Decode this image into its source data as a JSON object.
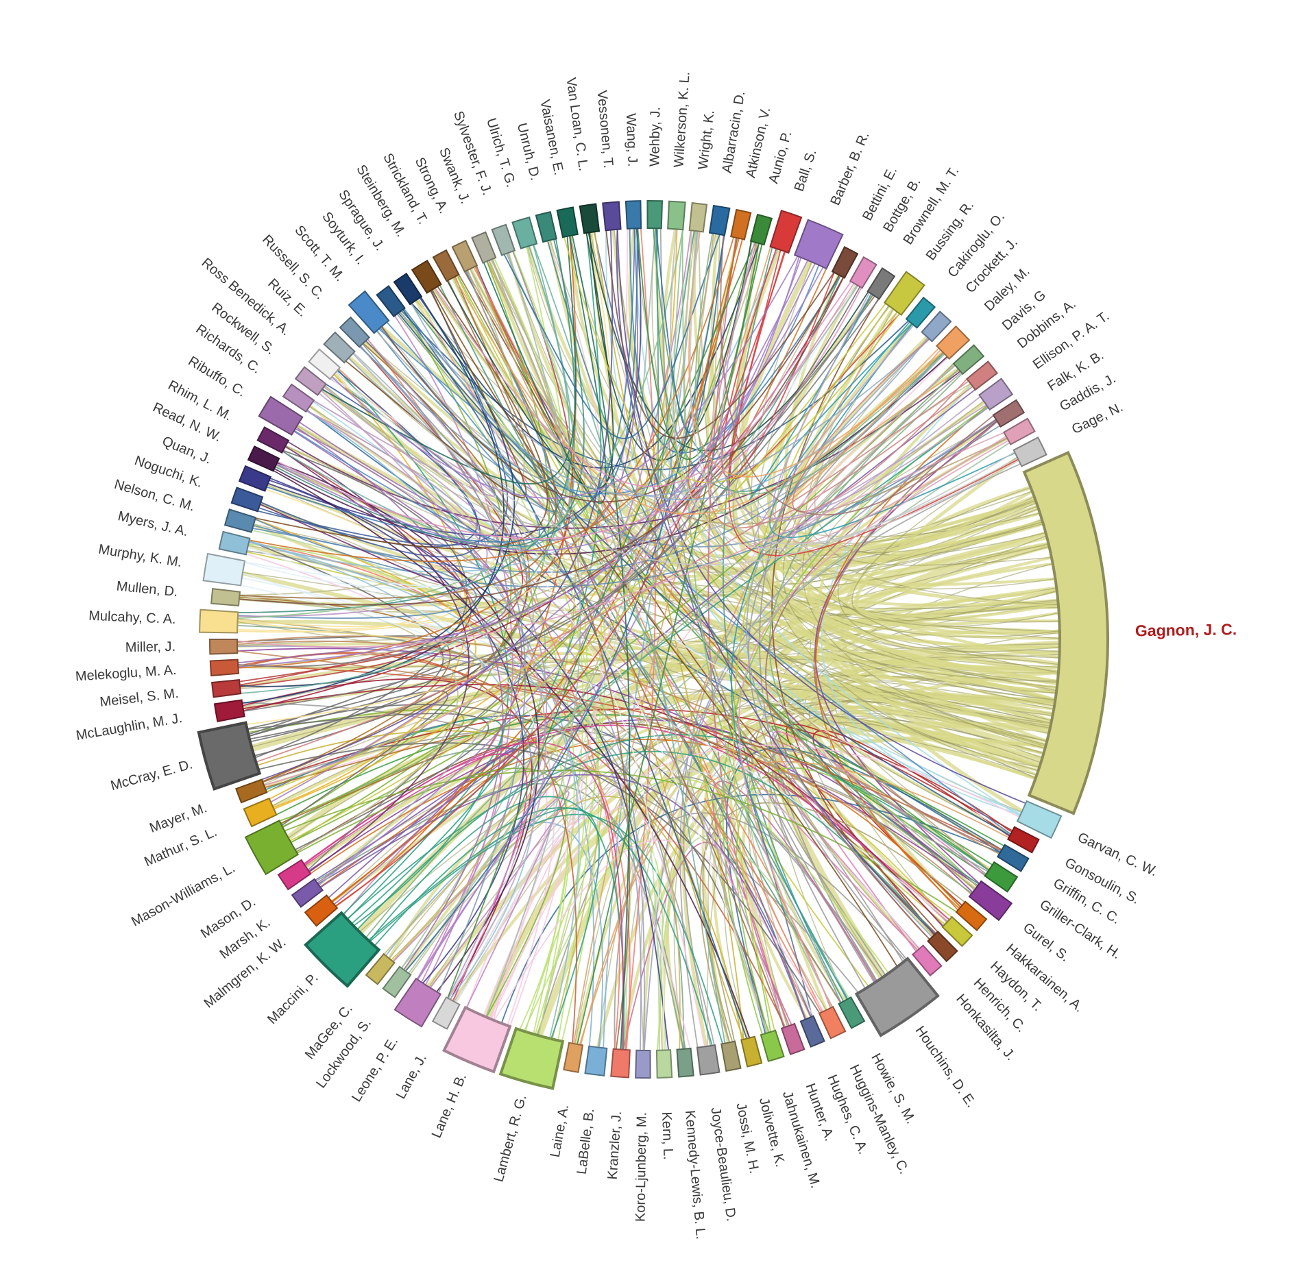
{
  "highlight": "Gagnon, J. C.",
  "nodes": [
    {
      "name": "Gagnon, J. C.",
      "color": "#d8d88a",
      "weight": 24
    },
    {
      "name": "Garvan, C. W.",
      "color": "#a6dce6",
      "weight": 1.6
    },
    {
      "name": "Gonsoulin, S.",
      "color": "#b22222",
      "weight": 1
    },
    {
      "name": "Griffin, C. C.",
      "color": "#2f6a9a",
      "weight": 1
    },
    {
      "name": "Griller-Clark, H.",
      "color": "#3c9a3c",
      "weight": 1.2
    },
    {
      "name": "Gurel, S.",
      "color": "#8a3c9a",
      "weight": 1.4
    },
    {
      "name": "Hakkarainen, A.",
      "color": "#d86a12",
      "weight": 1
    },
    {
      "name": "Haydon, T.",
      "color": "#c8c83a",
      "weight": 1
    },
    {
      "name": "Henrich, C.",
      "color": "#8a4a2a",
      "weight": 1
    },
    {
      "name": "Honkasilta, J.",
      "color": "#e07ab8",
      "weight": 1
    },
    {
      "name": "Houchins, D. E.",
      "color": "#9a9a9a",
      "weight": 4.5
    },
    {
      "name": "Howie, S. M.",
      "color": "#4a9a7a",
      "weight": 1
    },
    {
      "name": "Huggins-Manley, C.",
      "color": "#f08060",
      "weight": 1.1
    },
    {
      "name": "Hughes, C. A.",
      "color": "#5a6a9a",
      "weight": 1
    },
    {
      "name": "Hunter, A.",
      "color": "#c86a9a",
      "weight": 1
    },
    {
      "name": "Jahnukainen, M.",
      "color": "#8ac84a",
      "weight": 1.1
    },
    {
      "name": "Jolivette, K.",
      "color": "#c8b030",
      "weight": 1
    },
    {
      "name": "Jossi, M. H.",
      "color": "#a8a070",
      "weight": 1
    },
    {
      "name": "Joyce-Beaulieu, D.",
      "color": "#a0a0a0",
      "weight": 1.3
    },
    {
      "name": "Kennedy-Lewis, B. L.",
      "color": "#7aa08a",
      "weight": 1
    },
    {
      "name": "Kern, L.",
      "color": "#b8d8a0",
      "weight": 1
    },
    {
      "name": "Koro-Ljunberg, M.",
      "color": "#9a9aca",
      "weight": 1
    },
    {
      "name": "Kranzler, J.",
      "color": "#f07a6a",
      "weight": 1.2
    },
    {
      "name": "LaBelle, B.",
      "color": "#7ab0d8",
      "weight": 1.3
    },
    {
      "name": "Laine, A.",
      "color": "#e0a060",
      "weight": 1
    },
    {
      "name": "Lambert, R. G.",
      "color": "#b8e070",
      "weight": 3.5
    },
    {
      "name": "Lane, H. B.",
      "color": "#f8c8e0",
      "weight": 3.5
    },
    {
      "name": "Lane, J.",
      "color": "#d8d8d8",
      "weight": 1.1
    },
    {
      "name": "Leone, P. E.",
      "color": "#c080c0",
      "weight": 2.1
    },
    {
      "name": "Lockwood, S.",
      "color": "#a0c0a0",
      "weight": 1
    },
    {
      "name": "MaGee, C.",
      "color": "#c8b860",
      "weight": 1
    },
    {
      "name": "Maccini, P.",
      "color": "#2aa080",
      "weight": 3.8
    },
    {
      "name": "Malmgren, K. W.",
      "color": "#d86010",
      "weight": 1.2
    },
    {
      "name": "Marsh, K.",
      "color": "#7a5aaa",
      "weight": 1
    },
    {
      "name": "Mason, D.",
      "color": "#d83a8a",
      "weight": 1.2
    },
    {
      "name": "Mason-Williams, L.",
      "color": "#7ab030",
      "weight": 2.8
    },
    {
      "name": "Mathur, S. L.",
      "color": "#e8b020",
      "weight": 1.3
    },
    {
      "name": "Mayer, M.",
      "color": "#a86a20",
      "weight": 1
    },
    {
      "name": "McCray, E. D.",
      "color": "#6a6a6a",
      "weight": 3.8
    },
    {
      "name": "McLaughlin, M. J.",
      "color": "#a01a3a",
      "weight": 1.2
    },
    {
      "name": "Meisel, S. M.",
      "color": "#b83a3a",
      "weight": 1
    },
    {
      "name": "Melekoglu, M. A.",
      "color": "#c85a3a",
      "weight": 1
    },
    {
      "name": "Miller, J.",
      "color": "#c0885a",
      "weight": 1
    },
    {
      "name": "Mulcahy, C. A.",
      "color": "#f8e090",
      "weight": 1.5
    },
    {
      "name": "Mullen, D.",
      "color": "#c0c090",
      "weight": 1
    },
    {
      "name": "Murphy, K. M.",
      "color": "#e0f0f8",
      "weight": 1.8
    },
    {
      "name": "Myers, J. A.",
      "color": "#90c0d8",
      "weight": 1.2
    },
    {
      "name": "Nelson, C. M.",
      "color": "#5a8ab0",
      "weight": 1.1
    },
    {
      "name": "Noguchi, K.",
      "color": "#3a5a9a",
      "weight": 1.1
    },
    {
      "name": "Quan, J.",
      "color": "#3a3a8a",
      "weight": 1.1
    },
    {
      "name": "Read, N. W.",
      "color": "#4a1a4a",
      "weight": 1
    },
    {
      "name": "Rhim, L. M.",
      "color": "#6a2a6a",
      "weight": 1
    },
    {
      "name": "Ribuffo, C.",
      "color": "#9a6aaa",
      "weight": 1.5
    },
    {
      "name": "Richards, C.",
      "color": "#b890c0",
      "weight": 1
    },
    {
      "name": "Rockwell, S.",
      "color": "#c0a0c0",
      "weight": 1
    },
    {
      "name": "Ross Benedick, A.",
      "color": "#f0f0f0",
      "weight": 1.1
    },
    {
      "name": "Ruiz, E.",
      "color": "#a0b0b8",
      "weight": 1.1
    },
    {
      "name": "Russell, S. C.",
      "color": "#7a98b0",
      "weight": 1
    },
    {
      "name": "Scott, T. M.",
      "color": "#4a8ac8",
      "weight": 1.4
    },
    {
      "name": "Soyturk, I.",
      "color": "#2a5a8a",
      "weight": 1
    },
    {
      "name": "Sprague, J.",
      "color": "#1a3a6a",
      "weight": 1
    },
    {
      "name": "Steinberg, M.",
      "color": "#7a4a1a",
      "weight": 1.2
    },
    {
      "name": "Strickland, T.",
      "color": "#9a6a3a",
      "weight": 1
    },
    {
      "name": "Strong, A.",
      "color": "#b8a070",
      "weight": 1
    },
    {
      "name": "Swank, J.",
      "color": "#b0b0a0",
      "weight": 1
    },
    {
      "name": "Sylvester, F. J.",
      "color": "#a0b8b0",
      "weight": 1
    },
    {
      "name": "Ulrich, T. G.",
      "color": "#6ab0a0",
      "weight": 1.2
    },
    {
      "name": "Unruh, D.",
      "color": "#3a8a7a",
      "weight": 1
    },
    {
      "name": "Vaisanen, E.",
      "color": "#1a6a5a",
      "weight": 1.1
    },
    {
      "name": "Van Loan, C. L.",
      "color": "#1a4a3a",
      "weight": 1.1
    },
    {
      "name": "Vessonen, T.",
      "color": "#5a4a9a",
      "weight": 1.1
    },
    {
      "name": "Wang, J.",
      "color": "#3a7aaa",
      "weight": 1
    },
    {
      "name": "Wehby, J.",
      "color": "#4a9a7a",
      "weight": 1
    },
    {
      "name": "Wilkerson, K. L.",
      "color": "#8ac08a",
      "weight": 1.1
    },
    {
      "name": "Wright, K.",
      "color": "#c0c090",
      "weight": 1
    },
    {
      "name": "Albarracin, D.",
      "color": "#2a6aa0",
      "weight": 1.1
    },
    {
      "name": "Atkinson, V.",
      "color": "#d07020",
      "weight": 1
    },
    {
      "name": "Aunio, P.",
      "color": "#3a8a3a",
      "weight": 1
    },
    {
      "name": "Ball, S.",
      "color": "#d83a3a",
      "weight": 1.4
    },
    {
      "name": "Barber, B. R.",
      "color": "#a07ac8",
      "weight": 2.5
    },
    {
      "name": "Bettini, E.",
      "color": "#7a4a3a",
      "weight": 1
    },
    {
      "name": "Bottge, B.",
      "color": "#e090c0",
      "weight": 1
    },
    {
      "name": "Brownell, M. T.",
      "color": "#7a7a7a",
      "weight": 1
    },
    {
      "name": "Bussing, R.",
      "color": "#c8c840",
      "weight": 1.5
    },
    {
      "name": "Cakiroglu, O.",
      "color": "#2a9aaa",
      "weight": 1
    },
    {
      "name": "Crockett, J.",
      "color": "#90a8c8",
      "weight": 1
    },
    {
      "name": "Daley, M.",
      "color": "#f0a060",
      "weight": 1.3
    },
    {
      "name": "Davis, G",
      "color": "#80b080",
      "weight": 1
    },
    {
      "name": "Dobbins, A.",
      "color": "#d08080",
      "weight": 1
    },
    {
      "name": "Ellison, P. A. T.",
      "color": "#b8a0c8",
      "weight": 1.3
    },
    {
      "name": "Falk, K. B.",
      "color": "#a07070",
      "weight": 1
    },
    {
      "name": "Gaddis, J.",
      "color": "#e0a0b8",
      "weight": 1
    },
    {
      "name": "Gage, N.",
      "color": "#c8c8c8",
      "weight": 1.3
    }
  ]
}
